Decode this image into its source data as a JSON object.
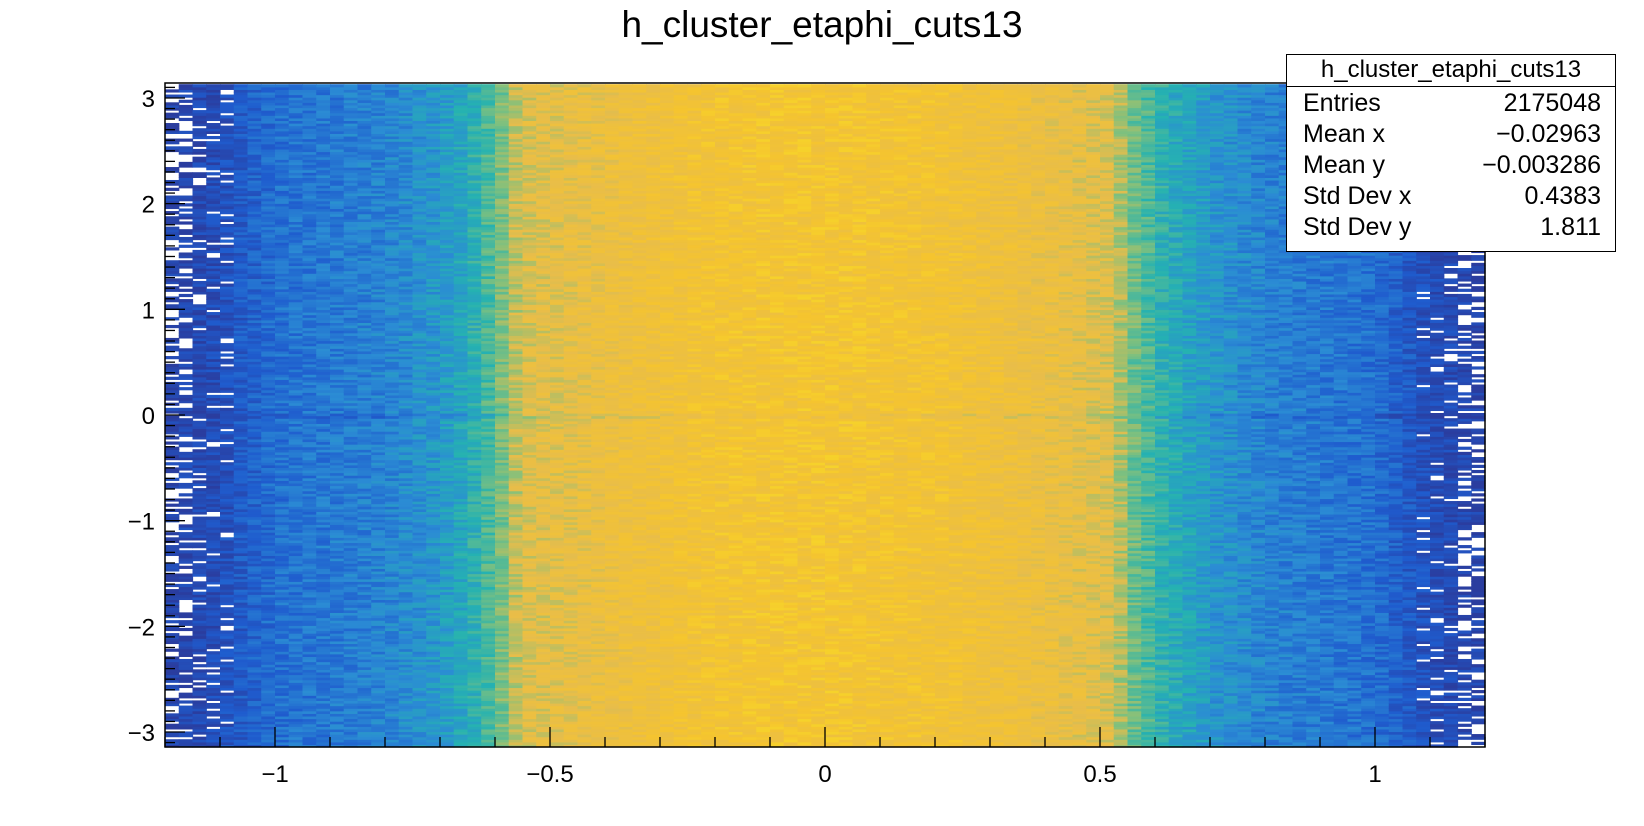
{
  "chart_data": {
    "type": "heatmap",
    "title": "h_cluster_etaphi_cuts13",
    "xlabel": "",
    "ylabel": "",
    "xlim": [
      -1.2,
      1.2
    ],
    "ylim": [
      -3.1416,
      3.1416
    ],
    "x_ticks": [
      -1,
      -0.5,
      0,
      0.5,
      1
    ],
    "x_tick_labels": [
      "−1",
      "−0.5",
      "0",
      "0.5",
      "1"
    ],
    "y_ticks": [
      -3,
      -2,
      -1,
      0,
      1,
      2,
      3
    ],
    "y_tick_labels": [
      "−3",
      "−2",
      "−1",
      "0",
      "1",
      "2",
      "3"
    ],
    "colormap": "kBird",
    "colors": [
      "#2a3d9f",
      "#1f5cce",
      "#2b8cd4",
      "#25b2b1",
      "#7fc07e",
      "#e8bd4a",
      "#f5c42f",
      "#f9ec23"
    ],
    "x_bin_width": 0.025,
    "y_bin_width": 0.0245,
    "x_profile": [
      {
        "x": -1.2,
        "level": 0.02
      },
      {
        "x": -1.1,
        "level": 0.08
      },
      {
        "x": -1.0,
        "level": 0.2
      },
      {
        "x": -0.8,
        "level": 0.26
      },
      {
        "x": -0.7,
        "level": 0.33
      },
      {
        "x": -0.65,
        "level": 0.4
      },
      {
        "x": -0.6,
        "level": 0.52
      },
      {
        "x": -0.55,
        "level": 0.7
      },
      {
        "x": -0.4,
        "level": 0.76
      },
      {
        "x": -0.2,
        "level": 0.83
      },
      {
        "x": 0.0,
        "level": 0.84
      },
      {
        "x": 0.2,
        "level": 0.82
      },
      {
        "x": 0.4,
        "level": 0.76
      },
      {
        "x": 0.52,
        "level": 0.7
      },
      {
        "x": 0.56,
        "level": 0.55
      },
      {
        "x": 0.62,
        "level": 0.42
      },
      {
        "x": 0.7,
        "level": 0.33
      },
      {
        "x": 0.8,
        "level": 0.26
      },
      {
        "x": 1.0,
        "level": 0.2
      },
      {
        "x": 1.05,
        "level": 0.14
      },
      {
        "x": 1.1,
        "level": 0.08
      },
      {
        "x": 1.2,
        "level": 0.02
      }
    ]
  },
  "stats": {
    "name": "h_cluster_etaphi_cuts13",
    "rows": [
      {
        "key": "Entries",
        "value": "2175048"
      },
      {
        "key": "Mean x",
        "value": "−0.02963"
      },
      {
        "key": "Mean y",
        "value": "−0.003286"
      },
      {
        "key": "Std Dev x",
        "value": "0.4383"
      },
      {
        "key": "Std Dev y",
        "value": "1.811"
      }
    ]
  }
}
